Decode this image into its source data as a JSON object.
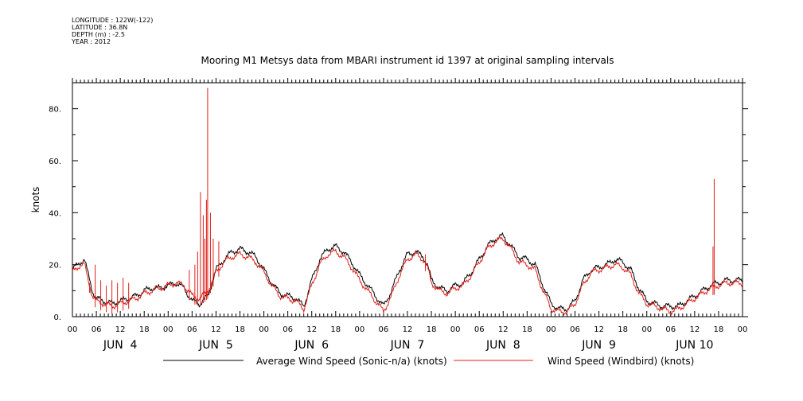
{
  "header": {
    "longitude": "LONGITUDE : 122W(-122)",
    "latitude": "LATITUDE : 36.8N",
    "depth": "DEPTH (m) : -2.5",
    "year": "YEAR : 2012"
  },
  "chart_data": {
    "type": "line",
    "title": "Mooring M1 Metsys data from MBARI instrument id 1397 at original sampling intervals",
    "ylabel": "knots",
    "xlabel": "",
    "ylim": [
      0,
      90
    ],
    "xlim": [
      0,
      168
    ],
    "x_unit": "hours since 00:00 Jun 4 2012",
    "yticks": [
      0,
      20,
      40,
      60,
      80
    ],
    "ytick_labels": [
      "0.",
      "20.",
      "40.",
      "60.",
      "80."
    ],
    "hour_ticks": [
      "00",
      "06",
      "12",
      "18",
      "00",
      "06",
      "12",
      "18",
      "00",
      "06",
      "12",
      "18",
      "00",
      "06",
      "12",
      "18",
      "00",
      "06",
      "12",
      "18",
      "00",
      "06",
      "12",
      "18",
      "00",
      "06",
      "12",
      "18",
      "00"
    ],
    "day_labels": [
      "JUN  4",
      "JUN  5",
      "JUN  6",
      "JUN  7",
      "JUN  8",
      "JUN  9",
      "JUN 10"
    ],
    "grid": false,
    "legend_placement": "bottom",
    "series": [
      {
        "name": "Average Wind Speed (Sonic-n/a) (knots)",
        "color": "#000000",
        "x": [
          0,
          2,
          3,
          4,
          5,
          6,
          8,
          10,
          12,
          14,
          16,
          18,
          20,
          22,
          24,
          26,
          28,
          30,
          32,
          34,
          36,
          38,
          40,
          42,
          44,
          46,
          48,
          50,
          52,
          54,
          56,
          58,
          60,
          62,
          64,
          66,
          68,
          70,
          72,
          74,
          76,
          78,
          80,
          82,
          84,
          86,
          88,
          89,
          90,
          92,
          94,
          96,
          98,
          100,
          102,
          104,
          106,
          108,
          110,
          112,
          114,
          116,
          118,
          120,
          122,
          124,
          126,
          128,
          130,
          132,
          134,
          136,
          138,
          140,
          142,
          144,
          146,
          148,
          150,
          152,
          154,
          156,
          158,
          160,
          162,
          164,
          166,
          168
        ],
        "y": [
          18,
          21,
          22,
          16,
          10,
          7,
          6,
          5,
          6,
          7,
          8,
          10,
          11,
          11,
          12,
          13,
          11,
          6,
          5,
          8,
          18,
          22,
          25,
          26,
          25,
          23,
          18,
          13,
          9,
          8,
          7,
          4,
          14,
          22,
          26,
          27,
          25,
          21,
          16,
          12,
          8,
          4,
          10,
          18,
          24,
          25,
          23,
          20,
          14,
          11,
          10,
          12,
          13,
          17,
          22,
          27,
          30,
          31,
          27,
          23,
          22,
          20,
          12,
          5,
          3,
          3,
          6,
          14,
          18,
          19,
          20,
          22,
          21,
          18,
          11,
          6,
          5,
          4,
          4,
          4,
          6,
          8,
          10,
          12,
          13,
          14,
          14,
          14
        ]
      },
      {
        "name": "Wind Speed (Windbird) (knots)",
        "color": "#e0201a",
        "x": [
          0,
          2,
          3,
          4,
          5,
          6,
          8,
          10,
          12,
          14,
          16,
          18,
          20,
          22,
          24,
          26,
          28,
          30,
          32,
          34,
          36,
          38,
          40,
          42,
          44,
          46,
          48,
          50,
          52,
          54,
          56,
          58,
          60,
          62,
          64,
          66,
          68,
          70,
          72,
          74,
          76,
          78,
          80,
          82,
          84,
          86,
          88,
          89,
          90,
          92,
          94,
          96,
          98,
          100,
          102,
          104,
          106,
          108,
          110,
          112,
          114,
          116,
          118,
          120,
          122,
          124,
          126,
          128,
          130,
          132,
          134,
          136,
          138,
          140,
          142,
          144,
          146,
          148,
          150,
          152,
          154,
          156,
          158,
          160,
          162,
          164,
          166,
          168
        ],
        "y": [
          17,
          20,
          20,
          14,
          8,
          6,
          5,
          4,
          5,
          6,
          7,
          9,
          10,
          11,
          12,
          13,
          12,
          8,
          7,
          10,
          17,
          21,
          23,
          24,
          23,
          21,
          17,
          12,
          8,
          7,
          6,
          3,
          12,
          20,
          24,
          25,
          23,
          19,
          14,
          10,
          6,
          2,
          8,
          16,
          22,
          24,
          22,
          19,
          13,
          10,
          9,
          11,
          12,
          16,
          21,
          26,
          29,
          30,
          26,
          21,
          20,
          18,
          10,
          3,
          2,
          2,
          5,
          12,
          17,
          18,
          19,
          20,
          19,
          16,
          9,
          5,
          4,
          3,
          2,
          3,
          5,
          7,
          9,
          11,
          12,
          13,
          13,
          13
        ]
      }
    ],
    "annotations": {
      "spikes_series": "Wind Speed (Windbird) (knots)",
      "spikes": [
        {
          "x": 4.3,
          "y": 13
        },
        {
          "x": 5.7,
          "y": 20
        },
        {
          "x": 7.1,
          "y": 14
        },
        {
          "x": 8.5,
          "y": 12
        },
        {
          "x": 9.9,
          "y": 14
        },
        {
          "x": 11.3,
          "y": 13
        },
        {
          "x": 12.7,
          "y": 15
        },
        {
          "x": 14.1,
          "y": 13
        },
        {
          "x": 29.3,
          "y": 18
        },
        {
          "x": 30.7,
          "y": 20
        },
        {
          "x": 31.4,
          "y": 25
        },
        {
          "x": 32.1,
          "y": 48
        },
        {
          "x": 32.8,
          "y": 39
        },
        {
          "x": 33.2,
          "y": 30
        },
        {
          "x": 33.6,
          "y": 45
        },
        {
          "x": 33.9,
          "y": 88
        },
        {
          "x": 34.6,
          "y": 40
        },
        {
          "x": 35.3,
          "y": 30
        },
        {
          "x": 36.7,
          "y": 29
        },
        {
          "x": 88.5,
          "y": 24
        },
        {
          "x": 160.6,
          "y": 27
        },
        {
          "x": 160.9,
          "y": 53
        }
      ]
    }
  }
}
